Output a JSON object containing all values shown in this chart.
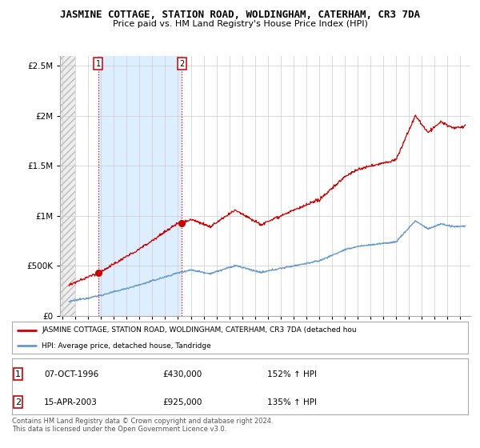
{
  "title": "JASMINE COTTAGE, STATION ROAD, WOLDINGHAM, CATERHAM, CR3 7DA",
  "subtitle": "Price paid vs. HM Land Registry's House Price Index (HPI)",
  "sale1_date_num": 1996.77,
  "sale1_price": 430000,
  "sale2_date_num": 2003.29,
  "sale2_price": 925000,
  "ylim": [
    0,
    2600000
  ],
  "yticks": [
    0,
    500000,
    1000000,
    1500000,
    2000000,
    2500000
  ],
  "ytick_labels": [
    "£0",
    "£500K",
    "£1M",
    "£1.5M",
    "£2M",
    "£2.5M"
  ],
  "hatch_end": 1995.0,
  "xmin": 1993.8,
  "xmax": 2025.8,
  "legend_label1": "JASMINE COTTAGE, STATION ROAD, WOLDINGHAM, CATERHAM, CR3 7DA (detached hou",
  "legend_label2": "HPI: Average price, detached house, Tandridge",
  "note1_label": "1",
  "note1_date": "07-OCT-1996",
  "note1_price": "£430,000",
  "note1_hpi": "152% ↑ HPI",
  "note2_label": "2",
  "note2_date": "15-APR-2003",
  "note2_price": "£925,000",
  "note2_hpi": "135% ↑ HPI",
  "footer": "Contains HM Land Registry data © Crown copyright and database right 2024.\nThis data is licensed under the Open Government Licence v3.0.",
  "red_line_color": "#cc0000",
  "blue_line_color": "#6699cc",
  "blue_shade_color": "#ddeeff",
  "hatch_color": "#cccccc",
  "grid_color": "#cccccc",
  "bg_color": "#ffffff",
  "plot_bg": "#ffffff"
}
